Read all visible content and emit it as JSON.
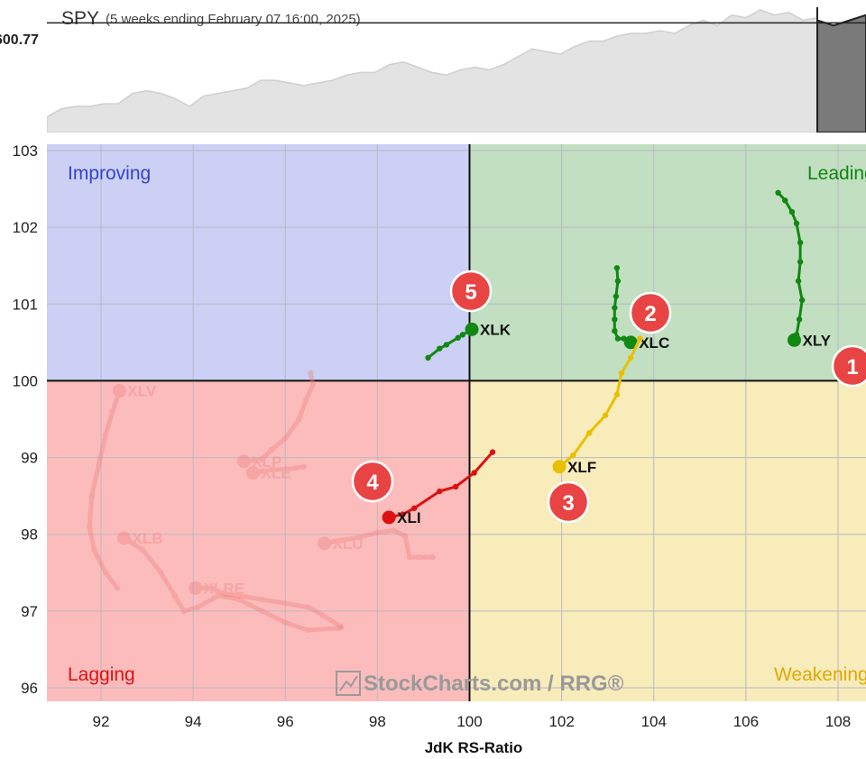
{
  "header": {
    "symbol": "SPY",
    "subtitle": "(5 weeks ending February 07 16:00, 2025)",
    "price_label": "600.77"
  },
  "watermark": "StockCharts.com / RRG®",
  "colors": {
    "improving_bg": "#cbd0f4",
    "leading_bg": "#c2dfc1",
    "weakening_bg": "#f8ecbb",
    "lagging_bg": "#fdbcbc",
    "improving_text": "#3344cc",
    "leading_text": "#118811",
    "weakening_text": "#e0a800",
    "lagging_text": "#dd1111",
    "badge": "#e84444"
  },
  "chart_data": {
    "type": "scatter",
    "xlabel": "JdK RS-Ratio",
    "xlim": [
      90.8,
      108.6
    ],
    "ylim": [
      95.8,
      103.1
    ],
    "x_ticks": [
      92,
      94,
      96,
      98,
      100,
      102,
      104,
      106,
      108
    ],
    "y_ticks": [
      96,
      97,
      98,
      99,
      100,
      101,
      102,
      103
    ],
    "quadrants": [
      "Improving",
      "Leading",
      "Weakening",
      "Lagging"
    ],
    "series": [
      {
        "name": "XLY",
        "color": "#118811",
        "faded": false,
        "badge": "1",
        "points": [
          [
            106.7,
            102.45
          ],
          [
            106.85,
            102.35
          ],
          [
            107.0,
            102.2
          ],
          [
            107.1,
            102.05
          ],
          [
            107.18,
            101.8
          ],
          [
            107.18,
            101.55
          ],
          [
            107.14,
            101.3
          ],
          [
            107.22,
            101.05
          ],
          [
            107.16,
            100.8
          ],
          [
            107.1,
            100.6
          ],
          [
            107.05,
            100.53
          ]
        ]
      },
      {
        "name": "XLC",
        "color": "#118811",
        "faded": false,
        "badge": "2",
        "points": [
          [
            103.2,
            101.47
          ],
          [
            103.22,
            101.3
          ],
          [
            103.18,
            101.1
          ],
          [
            103.15,
            100.95
          ],
          [
            103.15,
            100.8
          ],
          [
            103.15,
            100.65
          ],
          [
            103.22,
            100.55
          ],
          [
            103.35,
            100.55
          ],
          [
            103.5,
            100.5
          ]
        ]
      },
      {
        "name": "XLF",
        "color": "#e8c000",
        "faded": false,
        "badge": "3",
        "points": [
          [
            103.7,
            100.55
          ],
          [
            103.5,
            100.3
          ],
          [
            103.3,
            100.1
          ],
          [
            103.2,
            99.82
          ],
          [
            102.95,
            99.55
          ],
          [
            102.6,
            99.32
          ],
          [
            102.25,
            99.03
          ],
          [
            101.95,
            98.88
          ]
        ]
      },
      {
        "name": "XLI",
        "color": "#dd1111",
        "faded": false,
        "badge": "4",
        "points": [
          [
            100.5,
            99.07
          ],
          [
            100.1,
            98.8
          ],
          [
            99.7,
            98.62
          ],
          [
            99.35,
            98.56
          ],
          [
            98.8,
            98.34
          ],
          [
            98.55,
            98.26
          ],
          [
            98.25,
            98.22
          ]
        ]
      },
      {
        "name": "XLK",
        "color": "#118811",
        "faded": false,
        "badge": "5",
        "points": [
          [
            99.1,
            100.3
          ],
          [
            99.35,
            100.42
          ],
          [
            99.5,
            100.47
          ],
          [
            99.75,
            100.56
          ],
          [
            99.85,
            100.6
          ],
          [
            100.05,
            100.67
          ]
        ]
      },
      {
        "name": "XLV",
        "color": "#ee8888",
        "faded": true,
        "badge": "",
        "points": [
          [
            92.35,
            97.3
          ],
          [
            92.1,
            97.5
          ],
          [
            91.85,
            97.8
          ],
          [
            91.75,
            98.1
          ],
          [
            91.8,
            98.5
          ],
          [
            91.95,
            98.9
          ],
          [
            92.1,
            99.3
          ],
          [
            92.25,
            99.6
          ],
          [
            92.4,
            99.87
          ]
        ]
      },
      {
        "name": "XLB",
        "color": "#ee8888",
        "faded": true,
        "badge": "",
        "points": [
          [
            97.2,
            96.78
          ],
          [
            96.5,
            96.75
          ],
          [
            96.0,
            96.85
          ],
          [
            95.5,
            97.0
          ],
          [
            95.0,
            97.15
          ],
          [
            94.55,
            97.2
          ],
          [
            94.1,
            97.05
          ],
          [
            93.8,
            97.0
          ],
          [
            93.6,
            97.2
          ],
          [
            93.3,
            97.5
          ],
          [
            92.9,
            97.8
          ],
          [
            92.5,
            97.95
          ]
        ]
      },
      {
        "name": "XLP",
        "color": "#ee8888",
        "faded": true,
        "badge": "",
        "points": [
          [
            96.55,
            100.1
          ],
          [
            96.6,
            99.95
          ],
          [
            96.45,
            99.75
          ],
          [
            96.3,
            99.5
          ],
          [
            96.0,
            99.25
          ],
          [
            95.7,
            99.1
          ],
          [
            95.5,
            98.98
          ],
          [
            95.1,
            98.95
          ]
        ]
      },
      {
        "name": "XLE",
        "color": "#ee8888",
        "faded": true,
        "badge": "",
        "points": [
          [
            96.4,
            98.88
          ],
          [
            96.05,
            98.85
          ],
          [
            95.7,
            98.84
          ],
          [
            95.3,
            98.8
          ]
        ]
      },
      {
        "name": "XLRE",
        "color": "#ee8888",
        "faded": true,
        "badge": "",
        "points": [
          [
            97.2,
            96.8
          ],
          [
            96.8,
            96.95
          ],
          [
            96.5,
            97.05
          ],
          [
            96.0,
            97.1
          ],
          [
            95.5,
            97.15
          ],
          [
            95.0,
            97.2
          ],
          [
            94.7,
            97.22
          ],
          [
            94.4,
            97.3
          ],
          [
            94.05,
            97.3
          ]
        ]
      },
      {
        "name": "XLU",
        "color": "#ee8888",
        "faded": true,
        "badge": "",
        "points": [
          [
            99.2,
            97.7
          ],
          [
            98.9,
            97.7
          ],
          [
            98.7,
            97.7
          ],
          [
            98.6,
            97.98
          ],
          [
            98.35,
            98.05
          ],
          [
            98.0,
            98.02
          ],
          [
            97.6,
            97.96
          ],
          [
            97.2,
            97.92
          ],
          [
            96.85,
            97.88
          ]
        ]
      }
    ]
  },
  "price_chart": {
    "series": [
      {
        "name": "",
        "color": "#d8d8d8",
        "values": [
          572,
          575,
          576,
          576,
          577,
          577,
          581,
          582,
          581,
          579,
          576,
          580,
          581,
          582,
          583,
          586,
          586,
          585,
          584,
          585,
          586,
          588,
          589,
          589,
          592,
          593,
          591,
          589,
          588,
          590,
          591,
          590,
          592,
          595,
          598,
          597,
          596,
          599,
          601,
          601,
          603,
          604,
          604,
          605,
          604,
          607,
          609,
          607,
          611,
          610,
          613,
          611,
          612,
          609,
          610
        ]
      }
    ],
    "ylim": [
      566,
      614
    ],
    "price_line": 608,
    "dark_last": [
      609,
      607,
      609,
      611
    ]
  }
}
